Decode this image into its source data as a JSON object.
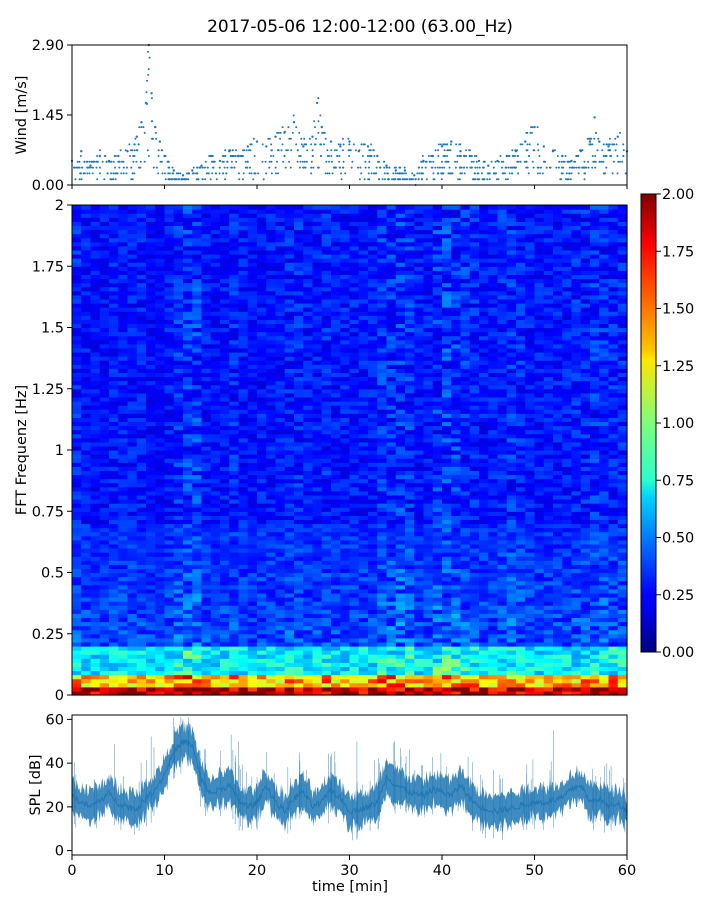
{
  "figure": {
    "title": "2017-05-06 12:00-12:00 (63.00_Hz)"
  },
  "chart_data": [
    {
      "type": "scatter",
      "panel": "wind",
      "ylabel": "Wind [m/s]",
      "y_tick_labels": [
        "2.90",
        "1.45",
        "0.00"
      ],
      "y_ticks": [
        2.9,
        1.45,
        0.0
      ],
      "xlim": [
        0,
        60
      ],
      "ylim": [
        0,
        2.9
      ],
      "marker_color": "#1f77b4",
      "x": [
        0,
        1,
        2,
        3,
        4,
        5,
        6,
        7,
        7.5,
        8,
        8.3,
        8.6,
        9,
        9.5,
        10,
        11,
        12,
        13,
        14,
        15,
        16,
        17,
        18,
        19,
        20,
        21,
        22,
        23,
        24,
        25,
        26,
        26.5,
        27,
        28,
        29,
        30,
        31,
        32,
        33,
        34,
        35,
        36,
        37,
        38,
        39,
        40,
        41,
        42,
        43,
        44,
        45,
        46,
        47,
        48,
        49,
        50,
        51,
        52,
        53,
        54,
        55,
        56,
        56.5,
        57,
        58,
        59,
        60
      ],
      "y": [
        0.5,
        0.7,
        0.4,
        0.6,
        0.5,
        0.6,
        0.7,
        1.0,
        1.3,
        1.7,
        2.9,
        1.9,
        1.2,
        0.9,
        0.6,
        0.3,
        0.2,
        0.3,
        0.4,
        0.6,
        0.5,
        0.7,
        0.6,
        0.8,
        0.9,
        0.8,
        1.0,
        1.1,
        1.3,
        0.8,
        1.0,
        1.7,
        1.2,
        0.9,
        0.8,
        0.9,
        0.7,
        0.8,
        0.6,
        0.4,
        0.3,
        0.3,
        0.2,
        0.5,
        0.6,
        0.8,
        0.9,
        0.7,
        0.6,
        0.5,
        0.4,
        0.5,
        0.6,
        0.7,
        0.9,
        1.2,
        0.8,
        0.7,
        0.6,
        0.5,
        0.7,
        0.9,
        1.4,
        0.9,
        0.8,
        1.0,
        0.7
      ]
    },
    {
      "type": "heatmap",
      "panel": "spectrogram",
      "ylabel": "FFT Frequenz [Hz]",
      "y_tick_labels": [
        "2",
        "1.75",
        "1.5",
        "1.25",
        "1",
        "0.75",
        "0.5",
        "0.25",
        "0"
      ],
      "y_ticks": [
        2,
        1.75,
        1.5,
        1.25,
        1,
        0.75,
        0.5,
        0.25,
        0
      ],
      "xlim": [
        0,
        60
      ],
      "ylim": [
        0,
        2
      ],
      "colormap": "jet",
      "colorbar": {
        "range": [
          0,
          2
        ],
        "tick_labels": [
          "2.00",
          "1.75",
          "1.50",
          "1.25",
          "1.00",
          "0.75",
          "0.50",
          "0.25",
          "0.00"
        ],
        "ticks": [
          2,
          1.75,
          1.5,
          1.25,
          1,
          0.75,
          0.5,
          0.25,
          0
        ]
      },
      "column_times": [
        0,
        1,
        2,
        3,
        4,
        5,
        6,
        7,
        8,
        9,
        10,
        11,
        12,
        13,
        14,
        15,
        16,
        17,
        18,
        19,
        20,
        21,
        22,
        23,
        24,
        25,
        26,
        27,
        28,
        29,
        30,
        31,
        32,
        33,
        34,
        35,
        36,
        37,
        38,
        39,
        40,
        41,
        42,
        43,
        44,
        45,
        46,
        47,
        48,
        49,
        50,
        51,
        52,
        53,
        54,
        55,
        56,
        57,
        58,
        59
      ],
      "column_intensity": [
        0.7,
        0.6,
        0.5,
        0.5,
        0.6,
        0.6,
        0.6,
        0.6,
        0.5,
        0.4,
        0.6,
        0.8,
        0.9,
        0.9,
        0.6,
        0.5,
        0.6,
        0.7,
        0.6,
        0.5,
        0.6,
        0.6,
        0.6,
        0.7,
        0.7,
        0.6,
        0.6,
        0.7,
        0.6,
        0.6,
        0.6,
        0.6,
        0.6,
        0.8,
        0.8,
        0.9,
        0.8,
        0.6,
        0.6,
        0.9,
        1.0,
        0.9,
        0.8,
        0.7,
        0.6,
        0.6,
        0.7,
        0.8,
        0.7,
        0.6,
        0.6,
        0.6,
        0.6,
        0.6,
        0.7,
        0.7,
        0.8,
        0.8,
        0.7,
        0.7
      ]
    },
    {
      "type": "line",
      "panel": "spl",
      "ylabel": "SPL [dB]",
      "xlabel": "time [min]",
      "y_tick_labels": [
        "60",
        "40",
        "20",
        "0"
      ],
      "y_ticks": [
        60,
        40,
        20,
        0
      ],
      "x_tick_labels": [
        "0",
        "10",
        "20",
        "30",
        "40",
        "50",
        "60"
      ],
      "x_ticks": [
        0,
        10,
        20,
        30,
        40,
        50,
        60
      ],
      "xlim": [
        0,
        60
      ],
      "ylim": [
        -2,
        62
      ],
      "line_color": "#1f77b4",
      "x": [
        0,
        1,
        2,
        3,
        4,
        5,
        6,
        7,
        8,
        9,
        10,
        11,
        12,
        13,
        14,
        15,
        16,
        17,
        18,
        19,
        20,
        21,
        22,
        23,
        24,
        25,
        26,
        27,
        28,
        29,
        30,
        31,
        32,
        33,
        34,
        35,
        36,
        37,
        38,
        39,
        40,
        41,
        42,
        43,
        44,
        45,
        46,
        47,
        48,
        49,
        50,
        51,
        52,
        53,
        54,
        55,
        56,
        57,
        58,
        59,
        60
      ],
      "y": [
        25,
        22,
        20,
        23,
        26,
        22,
        20,
        19,
        24,
        28,
        35,
        45,
        50,
        48,
        32,
        26,
        28,
        30,
        23,
        20,
        22,
        30,
        22,
        18,
        24,
        27,
        20,
        22,
        28,
        24,
        18,
        19,
        20,
        22,
        34,
        30,
        28,
        26,
        25,
        28,
        27,
        25,
        30,
        24,
        20,
        19,
        18,
        19,
        20,
        21,
        22,
        22,
        23,
        24,
        28,
        30,
        22,
        24,
        20,
        22,
        18
      ]
    }
  ]
}
